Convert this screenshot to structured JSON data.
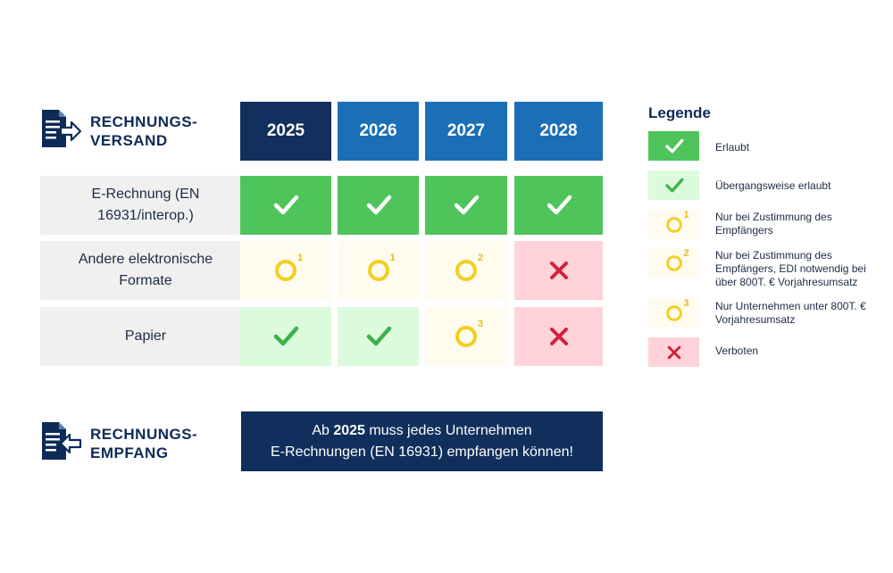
{
  "sections": {
    "versand": {
      "line1": "RECHNUNGS-",
      "line2": "VERSAND"
    },
    "empfang": {
      "line1": "RECHNUNGS-",
      "line2": "EMPFANG"
    }
  },
  "years": [
    "2025",
    "2026",
    "2027",
    "2028"
  ],
  "year_colors": [
    "#12305d",
    "#1b6fb6",
    "#1b6fb6",
    "#1b6fb6"
  ],
  "rows": [
    {
      "label_line1": "E-Rechnung (EN",
      "label_line2": "16931/interop.)",
      "cells": [
        {
          "status": "erlaubt"
        },
        {
          "status": "erlaubt"
        },
        {
          "status": "erlaubt"
        },
        {
          "status": "erlaubt"
        }
      ]
    },
    {
      "label_line1": "Andere elektronische",
      "label_line2": "Formate",
      "cells": [
        {
          "status": "bedingt",
          "note": "1"
        },
        {
          "status": "bedingt",
          "note": "1"
        },
        {
          "status": "bedingt",
          "note": "2"
        },
        {
          "status": "verboten"
        }
      ]
    },
    {
      "label_line1": "Papier",
      "label_line2": "",
      "cells": [
        {
          "status": "uebergang"
        },
        {
          "status": "uebergang"
        },
        {
          "status": "bedingt",
          "note": "3"
        },
        {
          "status": "verboten"
        }
      ]
    }
  ],
  "legend": {
    "title": "Legende",
    "items": [
      {
        "status": "erlaubt",
        "text": "Erlaubt"
      },
      {
        "status": "uebergang",
        "text": "Übergangsweise erlaubt"
      },
      {
        "status": "bedingt",
        "note": "1",
        "text": "Nur bei Zustimmung des Empfängers"
      },
      {
        "status": "bedingt",
        "note": "2",
        "text": "Nur bei Zustimmung des Empfängers, EDI notwendig bei über 800T. € Vorjahresumsatz"
      },
      {
        "status": "bedingt",
        "note": "3",
        "text": "Nur Unternehmen unter 800T. € Vorjahresumsatz"
      },
      {
        "status": "verboten",
        "text": "Verboten"
      }
    ]
  },
  "banner": {
    "prefix": "Ab ",
    "year": "2025",
    "suffix": " muss jedes Unternehmen",
    "line2": "E-Rechnungen (EN 16931) empfangen können!"
  },
  "colors": {
    "navy": "#0d2b57",
    "green": "#4fc45b",
    "light_green": "#dcfadc",
    "cream": "#fffbef",
    "pink": "#ffd3d9",
    "yellow": "#f2cf1f",
    "red": "#d0213d"
  }
}
